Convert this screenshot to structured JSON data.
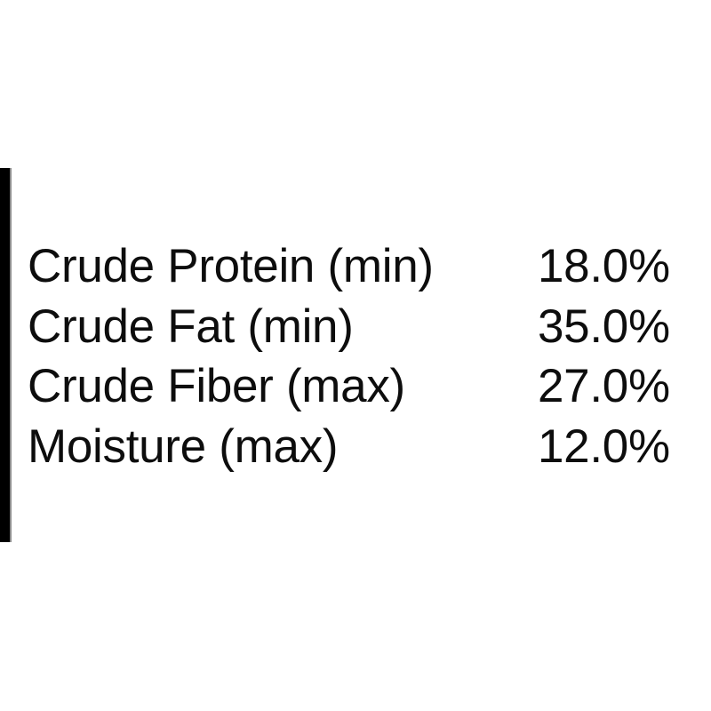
{
  "page": {
    "background_color": "#ffffff",
    "text_color": "#0d0d0d"
  },
  "left_bar": {
    "color": "#000000",
    "edge_color": "#8c8c8c"
  },
  "guaranteed_analysis": {
    "rows": [
      {
        "label": "Crude Protein (min)",
        "value": "18.0%"
      },
      {
        "label": "Crude Fat (min)",
        "value": "35.0%"
      },
      {
        "label": "Crude Fiber (max)",
        "value": "27.0%"
      },
      {
        "label": "Moisture (max)",
        "value": "12.0%"
      }
    ]
  }
}
